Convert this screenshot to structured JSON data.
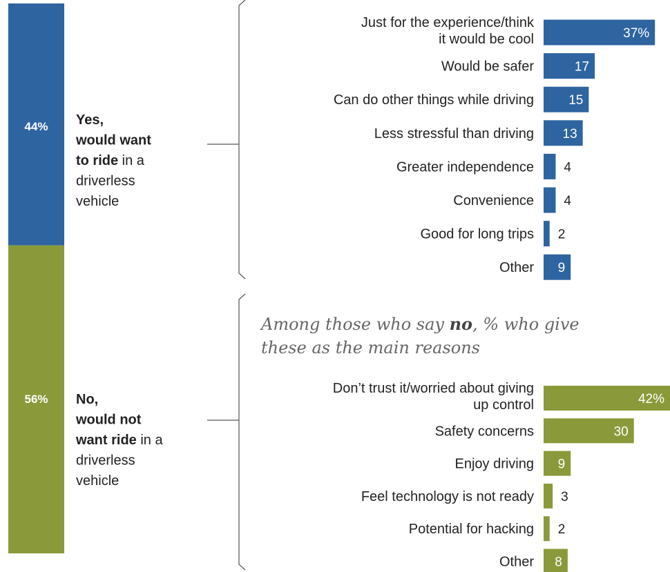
{
  "colors": {
    "yes": "#2e64a0",
    "no": "#8a9a3a"
  },
  "chart_data": {
    "type": "bar",
    "groups": [
      {
        "share": 44,
        "share_label": "44%",
        "label_lines": [
          [
            {
              "t": "Yes,",
              "b": true
            }
          ],
          [
            {
              "t": "would want",
              "b": true
            }
          ],
          [
            {
              "t": "to ride",
              "b": true
            },
            {
              "t": " in a",
              "b": false
            }
          ],
          [
            {
              "t": "driverless",
              "b": false
            }
          ],
          [
            {
              "t": "vehicle",
              "b": false
            }
          ]
        ],
        "note_lines": [],
        "categories": [
          [
            "Just for the experience/think",
            "it would be cool"
          ],
          [
            "Would be safer"
          ],
          [
            "Can do other things while driving"
          ],
          [
            "Less stressful than driving"
          ],
          [
            "Greater independence"
          ],
          [
            "Convenience"
          ],
          [
            "Good for long trips"
          ],
          [
            "Other"
          ]
        ],
        "values": [
          37,
          17,
          15,
          13,
          4,
          4,
          2,
          9
        ],
        "value_labels": [
          "37%",
          "17",
          "15",
          "13",
          "4",
          "4",
          "2",
          "9"
        ]
      },
      {
        "share": 56,
        "share_label": "56%",
        "label_lines": [
          [
            {
              "t": "No,",
              "b": true
            }
          ],
          [
            {
              "t": "would not",
              "b": true
            }
          ],
          [
            {
              "t": "want ride",
              "b": true
            },
            {
              "t": " in a",
              "b": false
            }
          ],
          [
            {
              "t": "driverless",
              "b": false
            }
          ],
          [
            {
              "t": "vehicle",
              "b": false
            }
          ]
        ],
        "note_lines": [
          [
            {
              "t": "Among those who say ",
              "b": false
            },
            {
              "t": "no",
              "b": true
            },
            {
              "t": ", % who give",
              "b": false
            }
          ],
          [
            {
              "t": "these as the main reasons",
              "b": false
            }
          ]
        ],
        "categories": [
          [
            "Don’t trust it/worried about giving",
            "up control"
          ],
          [
            "Safety concerns"
          ],
          [
            "Enjoy driving"
          ],
          [
            "Feel technology is not ready"
          ],
          [
            "Potential for hacking"
          ],
          [
            "Other"
          ]
        ],
        "values": [
          42,
          30,
          9,
          3,
          2,
          8
        ],
        "value_labels": [
          "42%",
          "30",
          "9",
          "3",
          "2",
          "8"
        ]
      }
    ]
  }
}
